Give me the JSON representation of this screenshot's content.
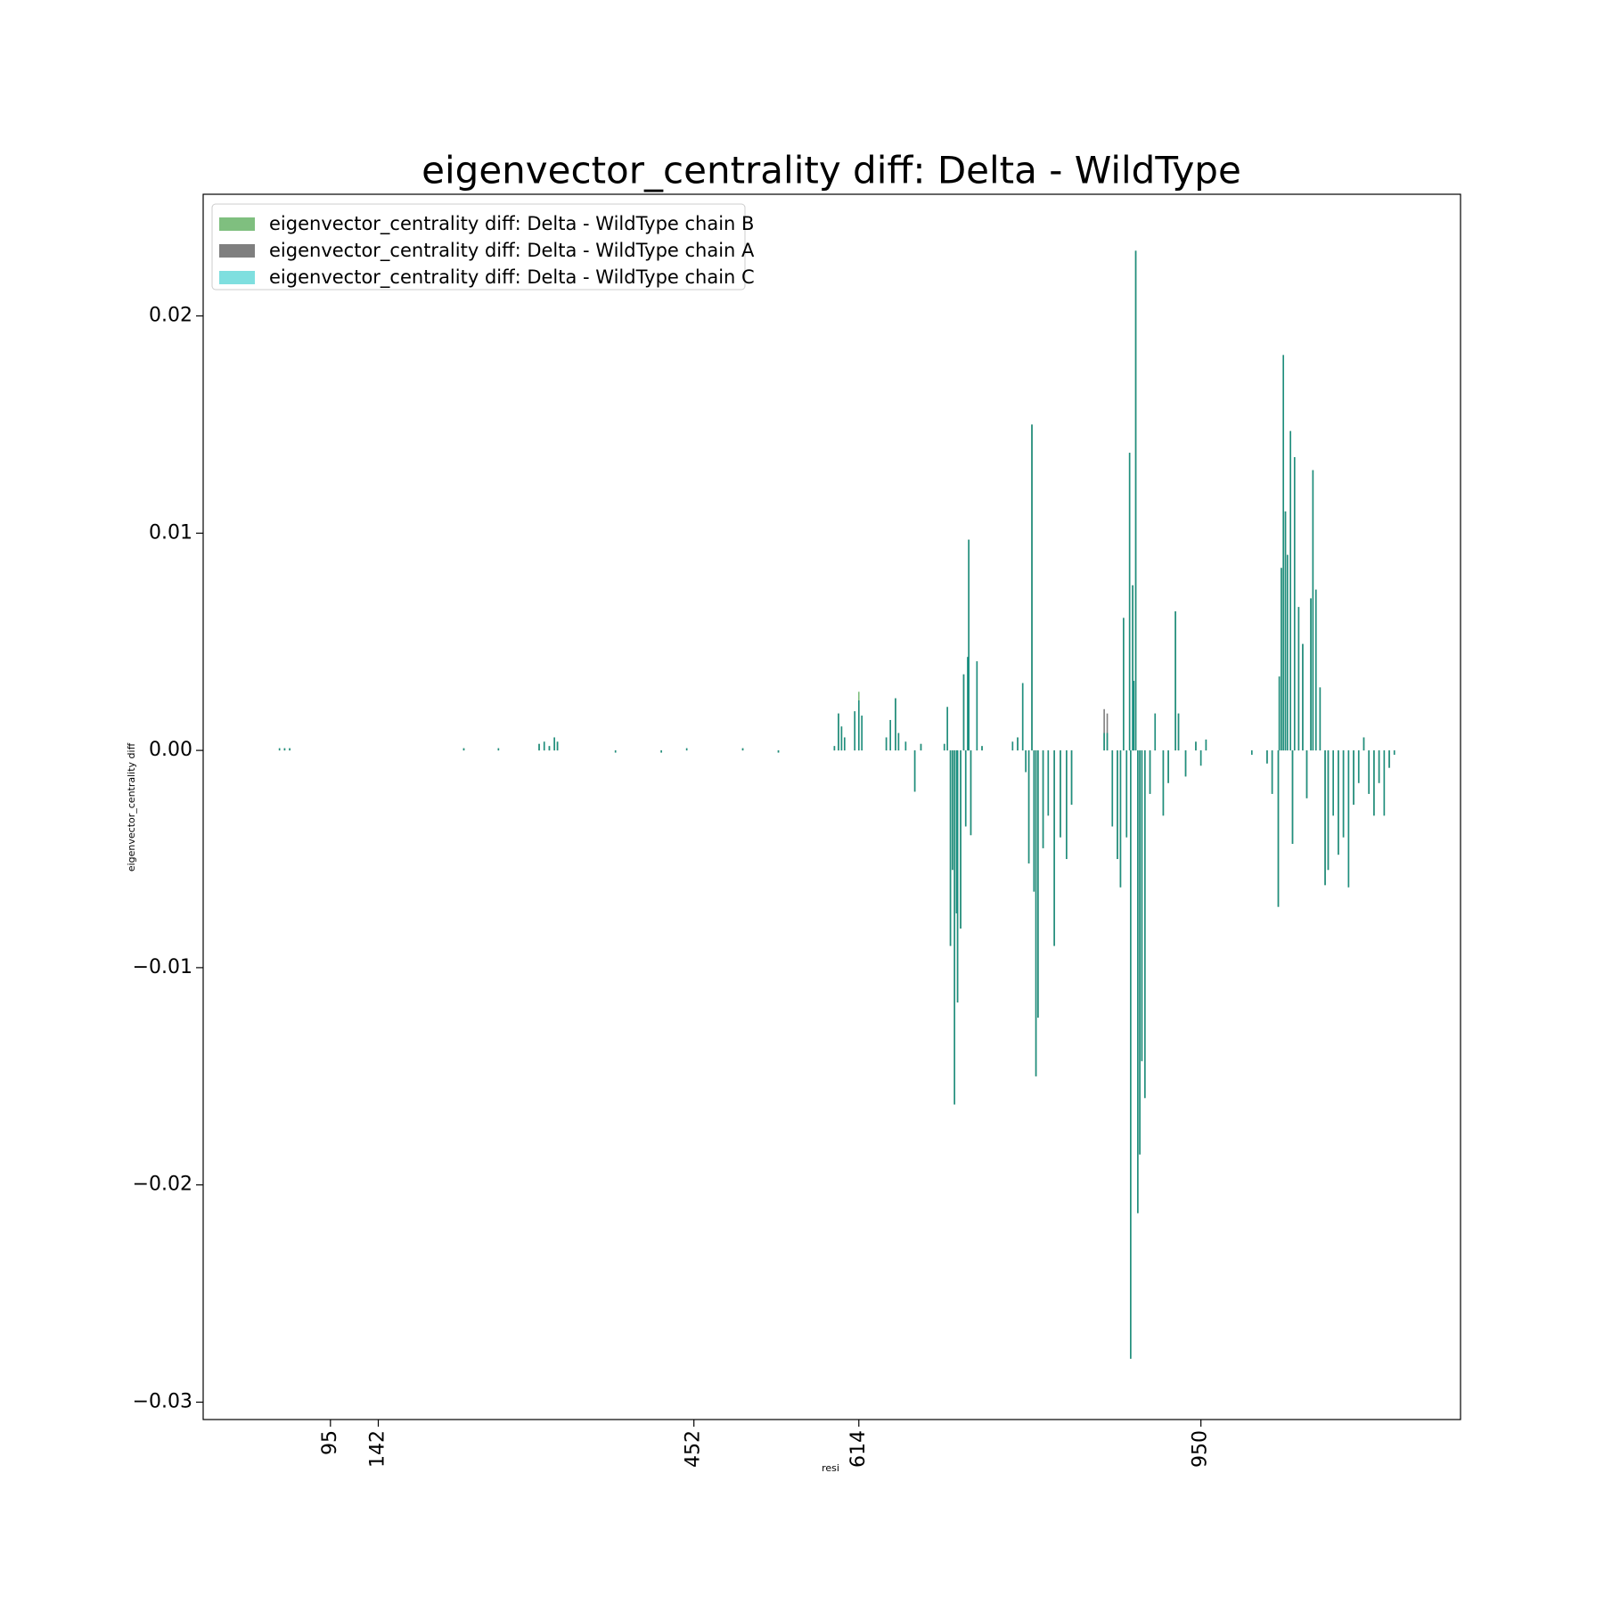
{
  "chart_data": {
    "type": "bar",
    "title": "eigenvector_centrality diff: Delta - WildType",
    "x_label": "resi",
    "y_label": "eigenvector_centrality diff",
    "x": [
      45,
      50,
      55,
      226,
      260,
      300,
      305,
      310,
      315,
      318,
      375,
      420,
      445,
      500,
      535,
      590,
      594,
      597,
      600,
      610,
      614,
      617,
      641,
      645,
      650,
      653,
      660,
      669,
      675,
      698,
      701,
      704,
      706,
      708,
      710,
      711,
      714,
      717,
      719,
      721,
      722,
      724,
      730,
      735,
      765,
      770,
      775,
      778,
      781,
      784,
      786,
      788,
      790,
      795,
      800,
      806,
      812,
      818,
      823,
      855,
      858,
      863,
      868,
      871,
      874,
      877,
      880,
      881,
      883,
      884,
      886,
      888,
      890,
      892,
      895,
      900,
      905,
      913,
      918,
      925,
      928,
      935,
      945,
      950,
      955,
      1000,
      1015,
      1020,
      1026,
      1027,
      1029,
      1031,
      1033,
      1035,
      1038,
      1040,
      1042,
      1046,
      1050,
      1054,
      1058,
      1060,
      1063,
      1067,
      1072,
      1075,
      1080,
      1085,
      1090,
      1095,
      1100,
      1105,
      1110,
      1115,
      1120,
      1125,
      1130,
      1135,
      1140
    ],
    "series": [
      {
        "name": "eigenvector_centrality diff: Delta - WildType chain B",
        "color": "#008000",
        "opacity": 0.5,
        "values": [
          0.0001,
          0.0001,
          0.0001,
          0.0001,
          0.0001,
          0.0003,
          0.0004,
          0.0002,
          0.0006,
          0.0004,
          -0.0001,
          -0.0001,
          0.0001,
          0.0001,
          -0.0001,
          0.0002,
          0.0017,
          0.0011,
          0.0006,
          0.0018,
          0.0027,
          0.0016,
          0.0006,
          0.0014,
          0.0024,
          0.0008,
          0.0004,
          -0.0019,
          0.0003,
          0.0003,
          0.002,
          -0.009,
          -0.0055,
          -0.0163,
          -0.0075,
          -0.0116,
          -0.0082,
          0.0035,
          -0.0035,
          0.0043,
          0.0097,
          -0.0039,
          0.0041,
          0.0002,
          0.0004,
          0.0006,
          0.0031,
          -0.001,
          -0.0052,
          0.015,
          -0.0065,
          -0.015,
          -0.0123,
          -0.0045,
          -0.003,
          -0.009,
          -0.004,
          -0.005,
          -0.0025,
          0.0008,
          0.0008,
          -0.0035,
          -0.005,
          -0.0063,
          0.0061,
          -0.004,
          0.0137,
          -0.028,
          0.0076,
          0.0032,
          0.023,
          -0.0213,
          -0.0186,
          -0.0143,
          -0.016,
          -0.002,
          0.0017,
          -0.003,
          -0.0015,
          0.0064,
          0.0017,
          -0.0012,
          0.0004,
          -0.0007,
          0.0005,
          -0.0002,
          -0.0006,
          -0.002,
          -0.0072,
          0.0034,
          0.0084,
          0.0182,
          0.011,
          0.009,
          0.0147,
          -0.0043,
          0.0135,
          0.0066,
          0.0049,
          -0.0022,
          0.007,
          0.0129,
          0.0074,
          0.0029,
          -0.0062,
          -0.0055,
          -0.003,
          -0.0048,
          -0.004,
          -0.0063,
          -0.0025,
          -0.0015,
          0.0006,
          -0.002,
          -0.003,
          -0.0015,
          -0.003,
          -0.0008,
          -0.0002
        ]
      },
      {
        "name": "eigenvector_centrality diff: Delta - WildType chain A",
        "color": "#000000",
        "opacity": 0.5,
        "values": [
          0.0001,
          0.0001,
          0.0001,
          0.0001,
          0.0001,
          0.0003,
          0.0004,
          0.0002,
          0.0006,
          0.0004,
          -0.0001,
          -0.0001,
          0.0001,
          0.0001,
          -0.0001,
          0.0002,
          0.0017,
          0.0011,
          0.0006,
          0.0018,
          0.0023,
          0.0016,
          0.0006,
          0.0014,
          0.0024,
          0.0008,
          0.0004,
          -0.0019,
          0.0003,
          0.0003,
          0.002,
          -0.009,
          -0.0055,
          -0.0163,
          -0.0075,
          -0.0116,
          -0.0082,
          0.0035,
          -0.0035,
          0.0043,
          0.0097,
          -0.0039,
          0.0041,
          0.0002,
          0.0004,
          0.0006,
          0.0031,
          -0.001,
          -0.0052,
          0.015,
          -0.0065,
          -0.015,
          -0.0123,
          -0.0045,
          -0.003,
          -0.009,
          -0.004,
          -0.005,
          -0.0025,
          0.0019,
          0.0017,
          -0.0035,
          -0.005,
          -0.0063,
          0.0061,
          -0.004,
          0.0137,
          -0.028,
          0.0076,
          0.0032,
          0.023,
          -0.0213,
          -0.0186,
          -0.0143,
          -0.016,
          -0.002,
          0.0017,
          -0.003,
          -0.0015,
          0.0064,
          0.0017,
          -0.0012,
          0.0004,
          -0.0007,
          0.0005,
          -0.0002,
          -0.0006,
          -0.002,
          -0.0072,
          0.0034,
          0.0084,
          0.0182,
          0.011,
          0.009,
          0.0147,
          -0.0043,
          0.0135,
          0.0066,
          0.0049,
          -0.0022,
          0.007,
          0.0129,
          0.0074,
          0.0029,
          -0.0062,
          -0.0055,
          -0.003,
          -0.0048,
          -0.004,
          -0.0063,
          -0.0025,
          -0.0015,
          0.0006,
          -0.002,
          -0.003,
          -0.0015,
          -0.003,
          -0.0008,
          -0.0002
        ]
      },
      {
        "name": "eigenvector_centrality diff: Delta - WildType chain C",
        "color": "#00bfbf",
        "opacity": 0.5,
        "values": [
          0.0001,
          0.0001,
          0.0001,
          0.0001,
          0.0001,
          0.0003,
          0.0004,
          0.0002,
          0.0006,
          0.0004,
          -0.0001,
          -0.0001,
          0.0001,
          0.0001,
          -0.0001,
          0.0002,
          0.0017,
          0.0011,
          0.0006,
          0.0018,
          0.0023,
          0.0016,
          0.0006,
          0.0014,
          0.0024,
          0.0008,
          0.0004,
          -0.0019,
          0.0003,
          0.0003,
          0.002,
          -0.009,
          -0.0055,
          -0.0163,
          -0.0075,
          -0.0116,
          -0.0082,
          0.0035,
          -0.0035,
          0.0043,
          0.0097,
          -0.0039,
          0.0041,
          0.0002,
          0.0004,
          0.0006,
          0.0031,
          -0.001,
          -0.0052,
          0.015,
          -0.0065,
          -0.015,
          -0.0123,
          -0.0045,
          -0.003,
          -0.009,
          -0.004,
          -0.005,
          -0.0025,
          0.0008,
          0.0008,
          -0.0035,
          -0.005,
          -0.0063,
          0.0061,
          -0.004,
          0.0137,
          -0.028,
          0.0076,
          0.0032,
          0.023,
          -0.0213,
          -0.0186,
          -0.0143,
          -0.016,
          -0.002,
          0.0017,
          -0.003,
          -0.0015,
          0.0064,
          0.0017,
          -0.0012,
          0.0004,
          -0.0007,
          0.0005,
          -0.0002,
          -0.0006,
          -0.002,
          -0.0072,
          0.0034,
          0.0084,
          0.0182,
          0.011,
          0.009,
          0.0147,
          -0.0043,
          0.0135,
          0.0066,
          0.0049,
          -0.0022,
          0.007,
          0.0129,
          0.0074,
          0.0029,
          -0.0062,
          -0.0055,
          -0.003,
          -0.0048,
          -0.004,
          -0.0063,
          -0.0025,
          -0.0015,
          0.0006,
          -0.002,
          -0.003,
          -0.0015,
          -0.003,
          -0.0008,
          -0.0002
        ]
      }
    ],
    "xlim": [
      -30,
      1205
    ],
    "xticks": [
      95,
      142,
      452,
      614,
      950
    ],
    "ylim": [
      -0.0308,
      0.0256
    ],
    "yticks": [
      {
        "value": -0.03,
        "label": "−0.03"
      },
      {
        "value": -0.02,
        "label": "−0.02"
      },
      {
        "value": -0.01,
        "label": "−0.01"
      },
      {
        "value": 0,
        "label": "0.00"
      },
      0.01,
      0.02
    ],
    "legend": "upper left",
    "grid": false
  }
}
